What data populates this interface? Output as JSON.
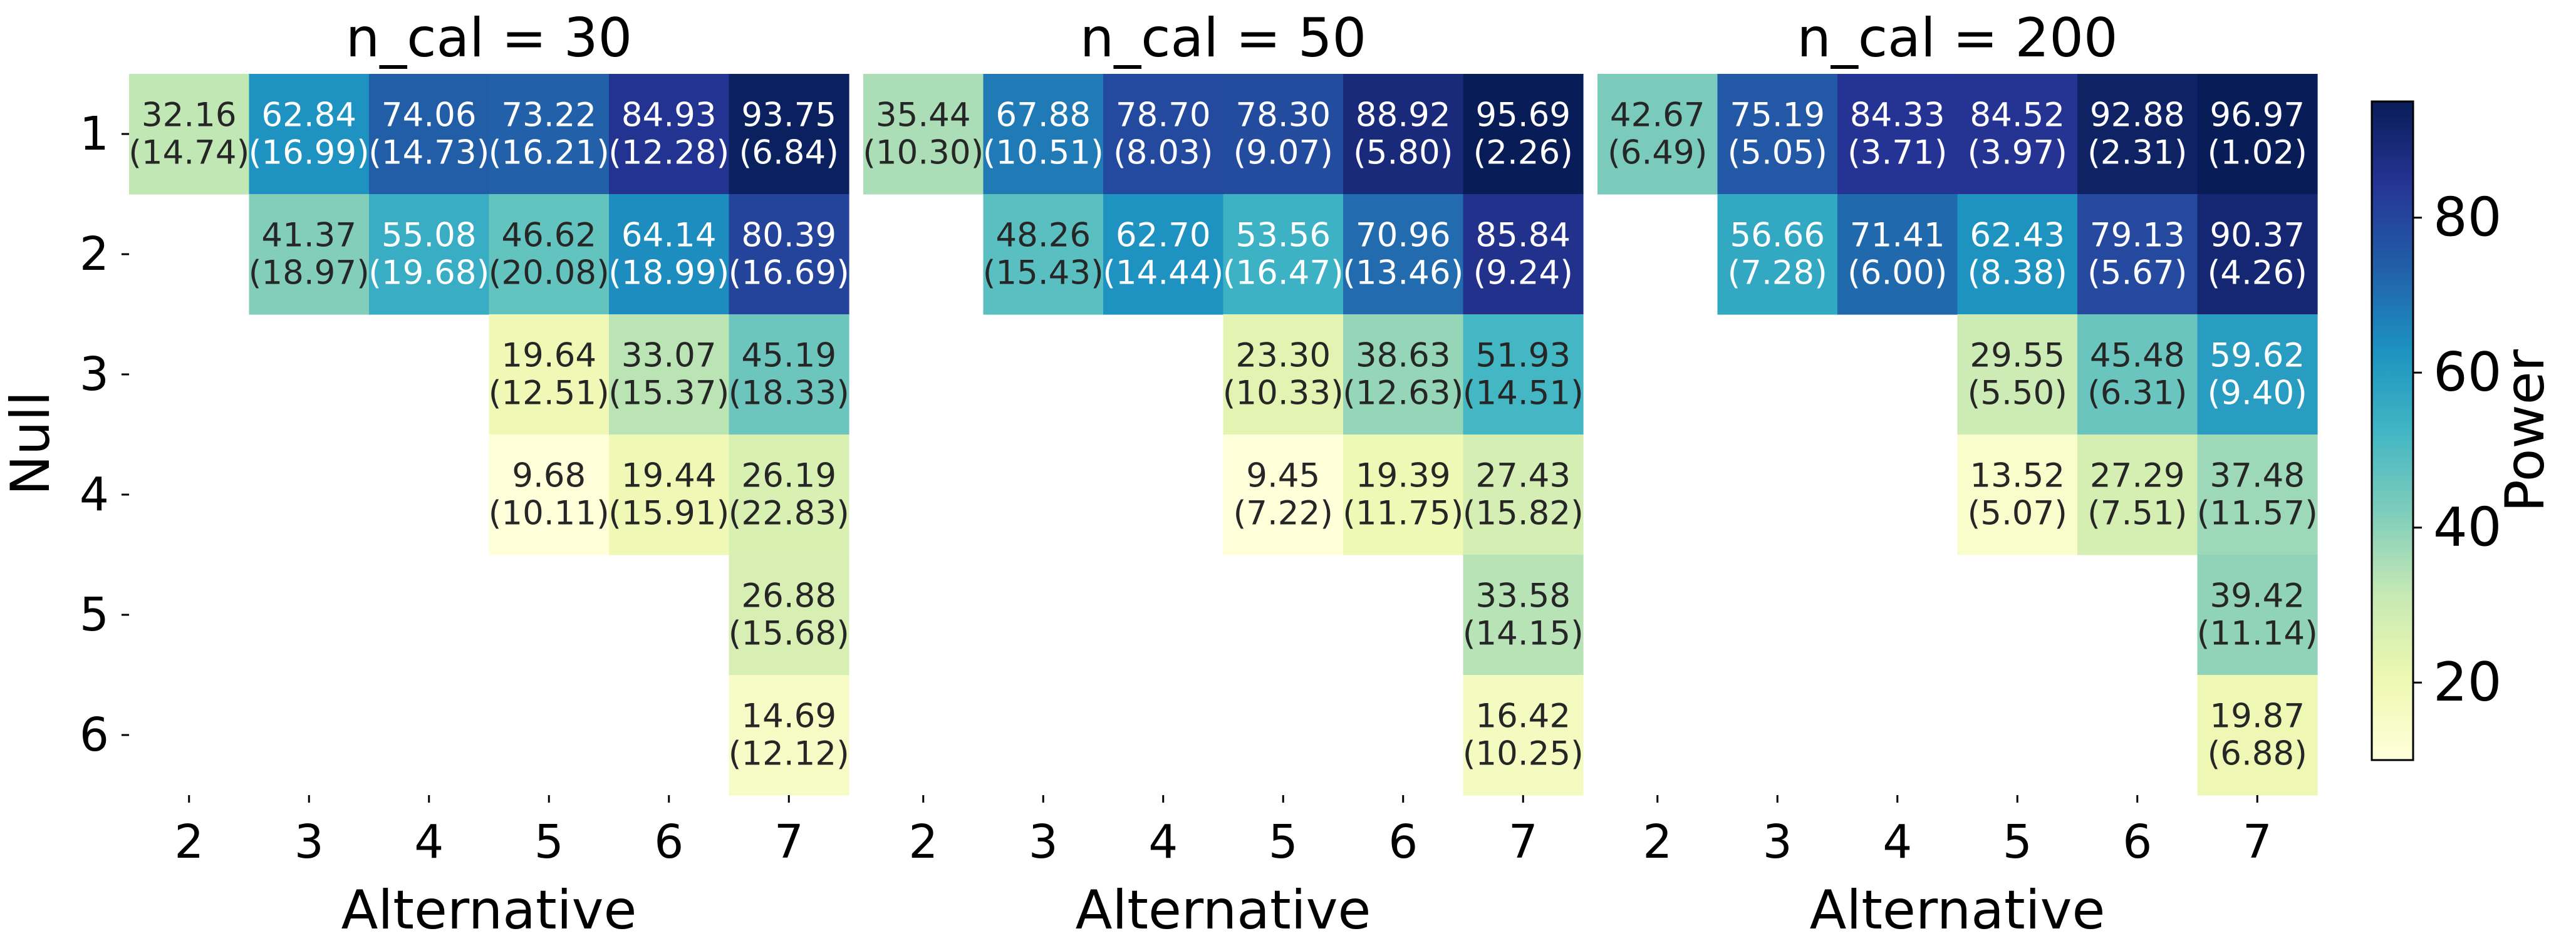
{
  "figure": {
    "ylabel": "Null",
    "colorbar_label": "Power",
    "colorbar_ticks": [
      "20",
      "40",
      "60",
      "80"
    ]
  },
  "chart_data": {
    "type": "heatmap",
    "colorscale": "YlGnBu",
    "color_range": [
      10,
      95
    ],
    "colorbar": {
      "ticks": [
        20,
        40,
        60,
        80
      ],
      "label": "Power"
    },
    "shared_ylabel": "Null",
    "nulls": [
      1,
      2,
      3,
      4,
      5,
      6
    ],
    "alternatives": [
      2,
      3,
      4,
      5,
      6,
      7
    ],
    "null_tick_labels": [
      "1",
      "2",
      "3",
      "4",
      "5",
      "6"
    ],
    "alternative_tick_labels": [
      "2",
      "3",
      "4",
      "5",
      "6",
      "7"
    ],
    "panels": [
      {
        "title": "n_cal = 30",
        "xlabel": "Alternative",
        "cells": [
          {
            "null": 1,
            "alt": 2,
            "value": 32.16,
            "value_label": "32.16",
            "sd_label": "(14.74)"
          },
          {
            "null": 1,
            "alt": 3,
            "value": 62.84,
            "value_label": "62.84",
            "sd_label": "(16.99)"
          },
          {
            "null": 1,
            "alt": 4,
            "value": 74.06,
            "value_label": "74.06",
            "sd_label": "(14.73)"
          },
          {
            "null": 1,
            "alt": 5,
            "value": 73.22,
            "value_label": "73.22",
            "sd_label": "(16.21)"
          },
          {
            "null": 1,
            "alt": 6,
            "value": 84.93,
            "value_label": "84.93",
            "sd_label": "(12.28)"
          },
          {
            "null": 1,
            "alt": 7,
            "value": 93.75,
            "value_label": "93.75",
            "sd_label": "(6.84)"
          },
          {
            "null": 2,
            "alt": 3,
            "value": 41.37,
            "value_label": "41.37",
            "sd_label": "(18.97)"
          },
          {
            "null": 2,
            "alt": 4,
            "value": 55.08,
            "value_label": "55.08",
            "sd_label": "(19.68)"
          },
          {
            "null": 2,
            "alt": 5,
            "value": 46.62,
            "value_label": "46.62",
            "sd_label": "(20.08)"
          },
          {
            "null": 2,
            "alt": 6,
            "value": 64.14,
            "value_label": "64.14",
            "sd_label": "(18.99)"
          },
          {
            "null": 2,
            "alt": 7,
            "value": 80.39,
            "value_label": "80.39",
            "sd_label": "(16.69)"
          },
          {
            "null": 3,
            "alt": 5,
            "value": 19.64,
            "value_label": "19.64",
            "sd_label": "(12.51)"
          },
          {
            "null": 3,
            "alt": 6,
            "value": 33.07,
            "value_label": "33.07",
            "sd_label": "(15.37)"
          },
          {
            "null": 3,
            "alt": 7,
            "value": 45.19,
            "value_label": "45.19",
            "sd_label": "(18.33)"
          },
          {
            "null": 4,
            "alt": 5,
            "value": 9.68,
            "value_label": "9.68",
            "sd_label": "(10.11)"
          },
          {
            "null": 4,
            "alt": 6,
            "value": 19.44,
            "value_label": "19.44",
            "sd_label": "(15.91)"
          },
          {
            "null": 4,
            "alt": 7,
            "value": 26.19,
            "value_label": "26.19",
            "sd_label": "(22.83)"
          },
          {
            "null": 5,
            "alt": 7,
            "value": 26.88,
            "value_label": "26.88",
            "sd_label": "(15.68)"
          },
          {
            "null": 6,
            "alt": 7,
            "value": 14.69,
            "value_label": "14.69",
            "sd_label": "(12.12)"
          }
        ]
      },
      {
        "title": "n_cal = 50",
        "xlabel": "Alternative",
        "cells": [
          {
            "null": 1,
            "alt": 2,
            "value": 35.44,
            "value_label": "35.44",
            "sd_label": "(10.30)"
          },
          {
            "null": 1,
            "alt": 3,
            "value": 67.88,
            "value_label": "67.88",
            "sd_label": "(10.51)"
          },
          {
            "null": 1,
            "alt": 4,
            "value": 78.7,
            "value_label": "78.70",
            "sd_label": "(8.03)"
          },
          {
            "null": 1,
            "alt": 5,
            "value": 78.3,
            "value_label": "78.30",
            "sd_label": "(9.07)"
          },
          {
            "null": 1,
            "alt": 6,
            "value": 88.92,
            "value_label": "88.92",
            "sd_label": "(5.80)"
          },
          {
            "null": 1,
            "alt": 7,
            "value": 95.69,
            "value_label": "95.69",
            "sd_label": "(2.26)"
          },
          {
            "null": 2,
            "alt": 3,
            "value": 48.26,
            "value_label": "48.26",
            "sd_label": "(15.43)"
          },
          {
            "null": 2,
            "alt": 4,
            "value": 62.7,
            "value_label": "62.70",
            "sd_label": "(14.44)"
          },
          {
            "null": 2,
            "alt": 5,
            "value": 53.56,
            "value_label": "53.56",
            "sd_label": "(16.47)"
          },
          {
            "null": 2,
            "alt": 6,
            "value": 70.96,
            "value_label": "70.96",
            "sd_label": "(13.46)"
          },
          {
            "null": 2,
            "alt": 7,
            "value": 85.84,
            "value_label": "85.84",
            "sd_label": "(9.24)"
          },
          {
            "null": 3,
            "alt": 5,
            "value": 23.3,
            "value_label": "23.30",
            "sd_label": "(10.33)"
          },
          {
            "null": 3,
            "alt": 6,
            "value": 38.63,
            "value_label": "38.63",
            "sd_label": "(12.63)"
          },
          {
            "null": 3,
            "alt": 7,
            "value": 51.93,
            "value_label": "51.93",
            "sd_label": "(14.51)"
          },
          {
            "null": 4,
            "alt": 5,
            "value": 9.45,
            "value_label": "9.45",
            "sd_label": "(7.22)"
          },
          {
            "null": 4,
            "alt": 6,
            "value": 19.39,
            "value_label": "19.39",
            "sd_label": "(11.75)"
          },
          {
            "null": 4,
            "alt": 7,
            "value": 27.43,
            "value_label": "27.43",
            "sd_label": "(15.82)"
          },
          {
            "null": 5,
            "alt": 7,
            "value": 33.58,
            "value_label": "33.58",
            "sd_label": "(14.15)"
          },
          {
            "null": 6,
            "alt": 7,
            "value": 16.42,
            "value_label": "16.42",
            "sd_label": "(10.25)"
          }
        ]
      },
      {
        "title": "n_cal = 200",
        "xlabel": "Alternative",
        "cells": [
          {
            "null": 1,
            "alt": 2,
            "value": 42.67,
            "value_label": "42.67",
            "sd_label": "(6.49)"
          },
          {
            "null": 1,
            "alt": 3,
            "value": 75.19,
            "value_label": "75.19",
            "sd_label": "(5.05)"
          },
          {
            "null": 1,
            "alt": 4,
            "value": 84.33,
            "value_label": "84.33",
            "sd_label": "(3.71)"
          },
          {
            "null": 1,
            "alt": 5,
            "value": 84.52,
            "value_label": "84.52",
            "sd_label": "(3.97)"
          },
          {
            "null": 1,
            "alt": 6,
            "value": 92.88,
            "value_label": "92.88",
            "sd_label": "(2.31)"
          },
          {
            "null": 1,
            "alt": 7,
            "value": 96.97,
            "value_label": "96.97",
            "sd_label": "(1.02)"
          },
          {
            "null": 2,
            "alt": 3,
            "value": 56.66,
            "value_label": "56.66",
            "sd_label": "(7.28)"
          },
          {
            "null": 2,
            "alt": 4,
            "value": 71.41,
            "value_label": "71.41",
            "sd_label": "(6.00)"
          },
          {
            "null": 2,
            "alt": 5,
            "value": 62.43,
            "value_label": "62.43",
            "sd_label": "(8.38)"
          },
          {
            "null": 2,
            "alt": 6,
            "value": 79.13,
            "value_label": "79.13",
            "sd_label": "(5.67)"
          },
          {
            "null": 2,
            "alt": 7,
            "value": 90.37,
            "value_label": "90.37",
            "sd_label": "(4.26)"
          },
          {
            "null": 3,
            "alt": 5,
            "value": 29.55,
            "value_label": "29.55",
            "sd_label": "(5.50)"
          },
          {
            "null": 3,
            "alt": 6,
            "value": 45.48,
            "value_label": "45.48",
            "sd_label": "(6.31)"
          },
          {
            "null": 3,
            "alt": 7,
            "value": 59.62,
            "value_label": "59.62",
            "sd_label": "(9.40)"
          },
          {
            "null": 4,
            "alt": 5,
            "value": 13.52,
            "value_label": "13.52",
            "sd_label": "(5.07)"
          },
          {
            "null": 4,
            "alt": 6,
            "value": 27.29,
            "value_label": "27.29",
            "sd_label": "(7.51)"
          },
          {
            "null": 4,
            "alt": 7,
            "value": 37.48,
            "value_label": "37.48",
            "sd_label": "(11.57)"
          },
          {
            "null": 5,
            "alt": 7,
            "value": 39.42,
            "value_label": "39.42",
            "sd_label": "(11.14)"
          },
          {
            "null": 6,
            "alt": 7,
            "value": 19.87,
            "value_label": "19.87",
            "sd_label": "(6.88)"
          }
        ]
      }
    ]
  }
}
